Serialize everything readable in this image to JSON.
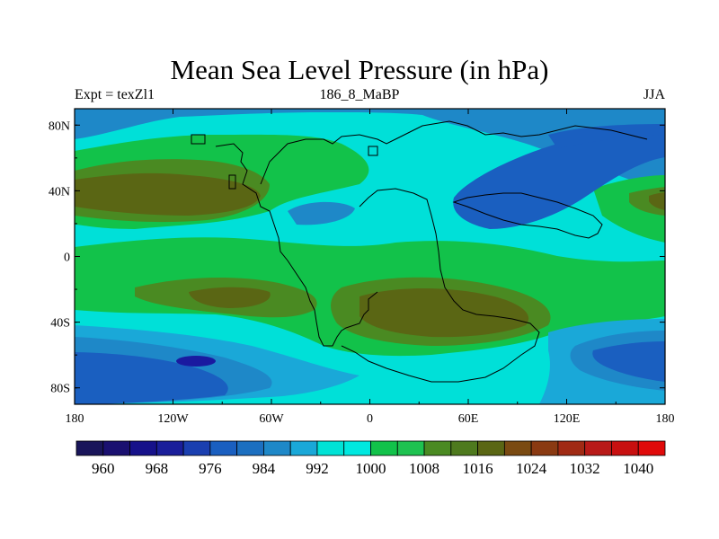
{
  "chart_data": {
    "type": "heatmap",
    "title": "Mean Sea Level Pressure (in hPa)",
    "subtitle_left": "Expt = texZl1",
    "subtitle_center": "186_8_MaBP",
    "subtitle_right": "JJA",
    "x_ticks": [
      "180",
      "120W",
      "60W",
      "0",
      "60E",
      "120E",
      "180"
    ],
    "y_ticks": [
      "80N",
      "40N",
      "0",
      "40S",
      "80S"
    ],
    "xlim": [
      -180,
      180
    ],
    "ylim": [
      -90,
      90
    ],
    "colorbar": {
      "labels": [
        "960",
        "968",
        "976",
        "984",
        "992",
        "1000",
        "1008",
        "1016",
        "1024",
        "1032",
        "1040"
      ],
      "levels": [
        960,
        964,
        968,
        972,
        976,
        980,
        984,
        988,
        992,
        996,
        1000,
        1004,
        1008,
        1012,
        1016,
        1020,
        1024,
        1028,
        1032,
        1036,
        1040
      ],
      "colors": [
        "#19155a",
        "#1a1070",
        "#16118a",
        "#1a1e9a",
        "#1a3fb0",
        "#1a5fc0",
        "#1c6fc0",
        "#1e88c8",
        "#1aa8d8",
        "#00e2d6",
        "#00e8e0",
        "#12c24a",
        "#1ec250",
        "#4a8a22",
        "#4e7a1e",
        "#5a6614",
        "#7a4a12",
        "#8a3a12",
        "#a02a14",
        "#b81a18",
        "#c81010",
        "#e00a0a"
      ]
    },
    "field_colors": {
      "deep_low": "#1a1aa0",
      "low": "#1a5fc0",
      "mid_low": "#1e88c8",
      "near_normal": "#1aa8d8",
      "normal": "#00e0d8",
      "mid_high": "#12c24a",
      "high": "#4a8a22",
      "very_high": "#5a6614"
    }
  }
}
